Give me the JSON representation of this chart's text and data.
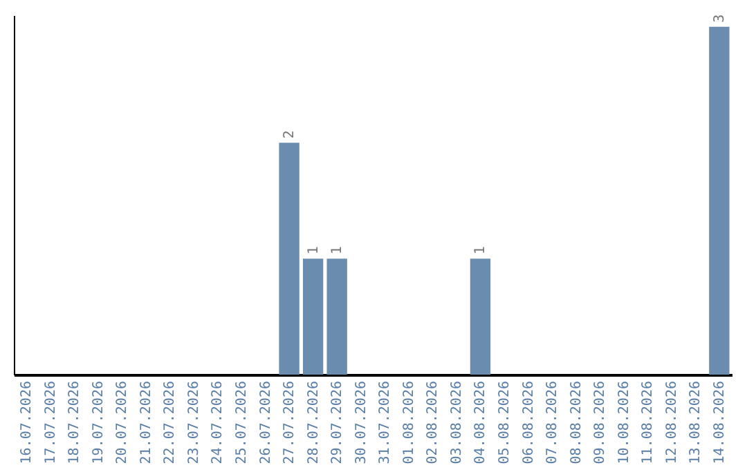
{
  "chart_data": {
    "type": "bar",
    "categories": [
      "16.07.2026",
      "17.07.2026",
      "18.07.2026",
      "19.07.2026",
      "20.07.2026",
      "21.07.2026",
      "22.07.2026",
      "23.07.2026",
      "24.07.2026",
      "25.07.2026",
      "26.07.2026",
      "27.07.2026",
      "28.07.2026",
      "29.07.2026",
      "30.07.2026",
      "31.07.2026",
      "01.08.2026",
      "02.08.2026",
      "03.08.2026",
      "04.08.2026",
      "05.08.2026",
      "06.08.2026",
      "07.08.2026",
      "08.08.2026",
      "09.08.2026",
      "10.08.2026",
      "11.08.2026",
      "12.08.2026",
      "13.08.2026",
      "14.08.2026"
    ],
    "values": [
      0,
      0,
      0,
      0,
      0,
      0,
      0,
      0,
      0,
      0,
      0,
      2,
      1,
      1,
      0,
      0,
      0,
      0,
      0,
      1,
      0,
      0,
      0,
      0,
      0,
      0,
      0,
      0,
      0,
      3
    ],
    "value_labels": [
      null,
      null,
      null,
      null,
      null,
      null,
      null,
      null,
      null,
      null,
      null,
      "2",
      "1",
      "1",
      null,
      null,
      null,
      null,
      null,
      "1",
      null,
      null,
      null,
      null,
      null,
      null,
      null,
      null,
      null,
      "3"
    ],
    "color": "#6a8caf",
    "ylim": [
      0,
      3.1
    ],
    "tick_labels": "x",
    "grid": false
  }
}
